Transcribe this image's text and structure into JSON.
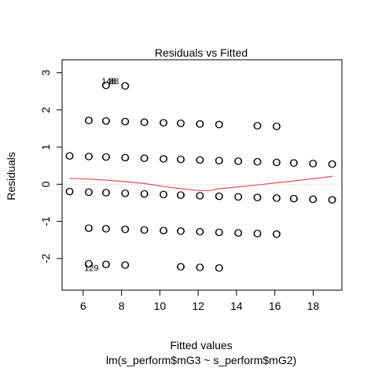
{
  "chart_data": {
    "type": "scatter",
    "title": "Residuals vs Fitted",
    "xlabel": "Fitted values",
    "subtitle": "lm(s_perform$mG3 ~ s_perform$mG2)",
    "ylabel": "Residuals",
    "xlim": [
      4.9,
      19.5
    ],
    "ylim": [
      -2.85,
      3.35
    ],
    "xticks": [
      6,
      8,
      10,
      12,
      14,
      16,
      18
    ],
    "yticks": [
      -2,
      -1,
      0,
      1,
      2,
      3
    ],
    "grid": false,
    "reference_line": {
      "y": 0,
      "style": "dotted",
      "color": "#bbbbbb"
    },
    "point_color": "#000000",
    "smoother_color": "#e0505a",
    "bands": [
      {
        "offset": 2.78,
        "x": [
          7.2,
          8.2
        ]
      },
      {
        "offset": 1.82,
        "x": [
          6.3,
          7.2,
          8.2,
          9.2,
          10.2,
          11.1,
          12.1,
          13.1,
          15.1,
          16.1
        ]
      },
      {
        "offset": 0.85,
        "x": [
          5.3,
          6.3,
          7.2,
          8.2,
          9.2,
          10.2,
          11.1,
          12.1,
          13.1,
          14.1,
          15.1,
          16.1,
          17.0,
          18.0,
          19.0
        ]
      },
      {
        "offset": -0.11,
        "x": [
          5.3,
          6.3,
          7.2,
          8.2,
          9.2,
          10.2,
          11.1,
          12.1,
          13.1,
          14.1,
          15.1,
          16.1,
          17.0,
          18.0,
          19.0
        ]
      },
      {
        "offset": -1.08,
        "x": [
          6.3,
          7.2,
          8.2,
          9.2,
          10.2,
          11.1,
          12.1,
          13.1,
          14.1,
          15.1,
          16.1
        ]
      },
      {
        "offset": -2.04,
        "x": [
          6.3,
          7.2,
          8.2,
          11.1,
          12.1,
          13.1
        ]
      }
    ],
    "slope_adjust": -0.0163,
    "smoother": {
      "x": [
        5.3,
        6.3,
        7.2,
        8.2,
        9.2,
        10.2,
        11.1,
        12.1,
        12.6,
        13.1,
        14.1,
        15.1,
        16.1,
        17.0,
        18.0,
        19.0
      ],
      "y": [
        0.16,
        0.14,
        0.11,
        0.07,
        0.02,
        -0.06,
        -0.12,
        -0.17,
        -0.17,
        -0.12,
        -0.07,
        -0.02,
        0.04,
        0.09,
        0.15,
        0.21
      ]
    },
    "point_labels": [
      {
        "text": "148",
        "x": 7.2,
        "y": 2.78
      },
      {
        "text": "88",
        "x": 7.6,
        "y": 2.78
      },
      {
        "text": "129",
        "x": 6.3,
        "y": -2.25
      }
    ]
  }
}
